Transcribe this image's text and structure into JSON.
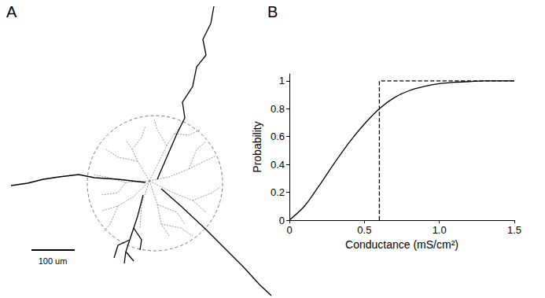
{
  "panels": [
    {
      "label": "A",
      "scale_bar": {
        "label": "100 um"
      }
    },
    {
      "label": "B"
    }
  ],
  "chart_data": {
    "type": "line",
    "x_label": "Conductance (mS/cm²)",
    "y_label": "Probability",
    "xlim": [
      0,
      1.5
    ],
    "xticks": [
      0,
      0.5,
      {
        "value": 1.0,
        "label": "1.0"
      },
      1.5
    ],
    "ylim": [
      0,
      1.05
    ],
    "yticks": [
      0,
      0.2,
      0.4,
      0.6,
      0.8,
      1
    ],
    "grid": false,
    "series": [
      {
        "color": "#000000",
        "line_style": "solid",
        "x": [
          0,
          0.1,
          0.2,
          0.3,
          0.4,
          0.5,
          0.6,
          0.7,
          0.8,
          0.9,
          1.0,
          1.1,
          1.2,
          1.3,
          1.4,
          1.5
        ],
        "values": [
          0,
          0.1,
          0.25,
          0.41,
          0.56,
          0.69,
          0.8,
          0.88,
          0.93,
          0.96,
          0.98,
          0.99,
          0.995,
          1,
          1,
          1
        ]
      },
      {
        "color": "#000000",
        "line_style": "dashed",
        "x": [
          0.6,
          0.6,
          1.5
        ],
        "values": [
          0,
          1,
          1
        ]
      }
    ]
  }
}
